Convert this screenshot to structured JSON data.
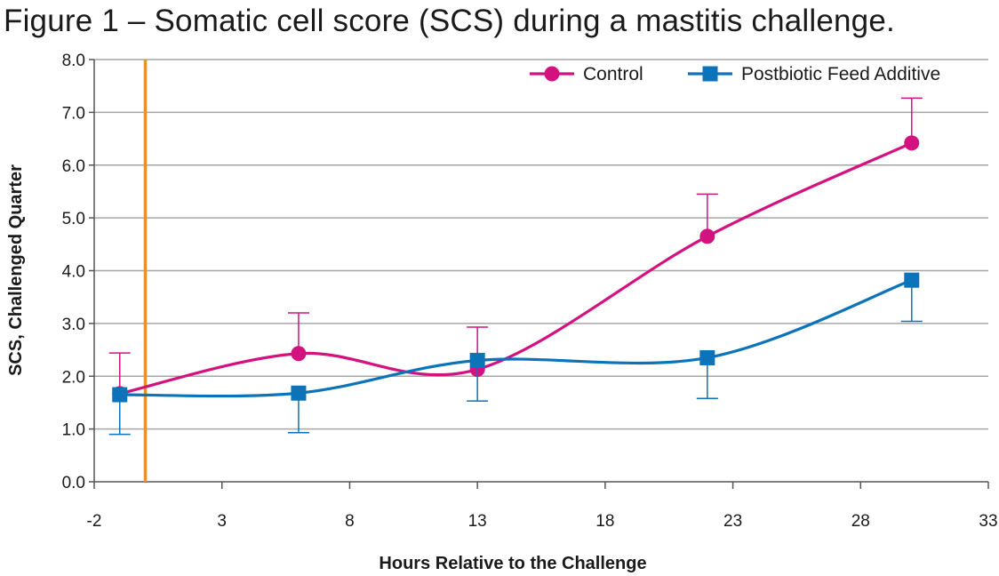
{
  "chart_data": {
    "type": "line",
    "title": "Figure 1 – Somatic cell score (SCS) during a mastitis challenge.",
    "xlabel": "Hours Relative to the Challenge",
    "ylabel": "SCS, Challenged Quarter",
    "xlim": [
      -2,
      33
    ],
    "ylim": [
      0,
      8
    ],
    "x_ticks": [
      "-2",
      "3",
      "8",
      "13",
      "18",
      "23",
      "28",
      "33"
    ],
    "x_tick_values": [
      -2,
      3,
      8,
      13,
      18,
      23,
      28,
      33
    ],
    "y_ticks": [
      "0.0",
      "1.0",
      "2.0",
      "3.0",
      "4.0",
      "5.0",
      "6.0",
      "7.0",
      "8.0"
    ],
    "y_tick_values": [
      0,
      1,
      2,
      3,
      4,
      5,
      6,
      7,
      8
    ],
    "grid": true,
    "legend_position": "top-right",
    "reference_line": {
      "x": 0,
      "color": "#e8902a"
    },
    "series": [
      {
        "name": "Control",
        "color": "#d4127f",
        "marker": "circle",
        "x": [
          -1,
          6,
          13,
          22,
          30
        ],
        "y": [
          1.67,
          2.43,
          2.13,
          4.65,
          6.42
        ],
        "error": [
          0.77,
          0.77,
          0.8,
          0.8,
          0.85
        ],
        "error_direction": "up"
      },
      {
        "name": "Postbiotic Feed Additive",
        "color": "#0b73ba",
        "marker": "square",
        "x": [
          -1,
          6,
          13,
          22,
          30
        ],
        "y": [
          1.65,
          1.68,
          2.3,
          2.35,
          3.82
        ],
        "error": [
          0.75,
          0.75,
          0.77,
          0.77,
          0.78
        ],
        "error_direction": "down"
      }
    ]
  }
}
